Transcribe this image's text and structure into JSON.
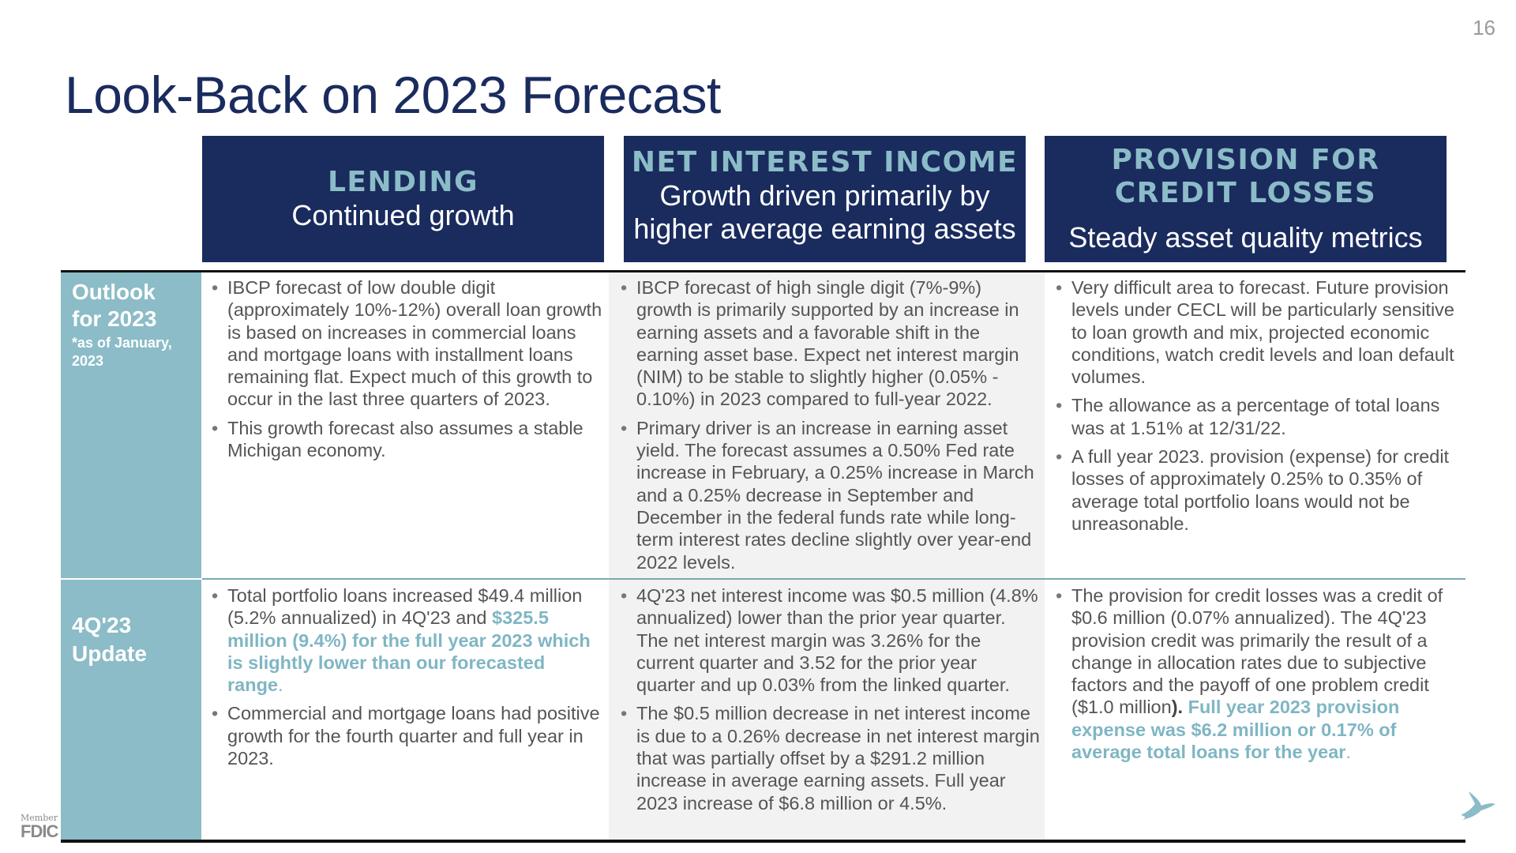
{
  "page_number": "16",
  "title": "Look-Back on 2023 Forecast",
  "columns": [
    {
      "category": "LENDING",
      "subtitle": "Continued growth"
    },
    {
      "category": "NET INTEREST INCOME",
      "subtitle": "Growth driven primarily by higher average earning assets"
    },
    {
      "category_line1": "PROVISION FOR",
      "category_line2": "CREDIT LOSSES",
      "subtitle": "Steady asset quality metrics"
    }
  ],
  "rows": [
    {
      "label": "Outlook for 2023",
      "note": "*as of January, 2023",
      "cells": [
        [
          "IBCP forecast of low double digit (approximately 10%-12%) overall loan growth is based on increases in commercial loans and mortgage loans with installment loans remaining flat. Expect much of this growth to occur in the last three quarters of 2023.",
          "This growth forecast also assumes a stable Michigan economy."
        ],
        [
          "IBCP forecast of high single digit (7%-9%) growth is primarily supported by an increase in earning assets and a favorable shift in the earning asset base. Expect net interest margin (NIM) to be stable to slightly higher (0.05% - 0.10%) in 2023 compared to full-year 2022.",
          "Primary driver is an increase in earning asset yield. The forecast assumes a 0.50% Fed rate increase in February, a 0.25% increase in March and a 0.25% decrease in September and December in the federal funds rate while long-term interest rates decline slightly over year-end 2022 levels."
        ],
        [
          "Very difficult area to forecast. Future provision levels under CECL will be particularly sensitive to loan growth and mix, projected economic conditions, watch credit levels and loan default volumes.",
          "The allowance as a percentage of total loans was at 1.51% at 12/31/22.",
          "A full year 2023. provision (expense) for credit losses of approximately 0.25% to 0.35% of average total portfolio loans would not be unreasonable."
        ]
      ]
    },
    {
      "label_line1": "4Q'23",
      "label_line2": "Update",
      "cells": {
        "lending_1_plain": "Total portfolio loans increased $49.4 million (5.2% annualized) in 4Q'23 and ",
        "lending_1_highlight": "$325.5 million (9.4%) for the full year 2023 which is slightly lower than our forecasted range",
        "lending_1_end": ".",
        "lending_2": "Commercial and mortgage loans had positive growth for the fourth quarter and full year in 2023.",
        "nii_1": "4Q'23 net interest income was $0.5 million (4.8% annualized)  lower than the prior year quarter. The net interest margin was 3.26% for the current quarter and 3.52 for the prior year quarter and up 0.03% from the linked quarter.",
        "nii_2": "The $0.5 million decrease in net interest income is due to a 0.26% decrease in net interest margin that was partially offset by a $291.2 million increase in average earning assets. Full year 2023 increase of $6.8 million or 4.5%.",
        "pcl_1_plain": "The provision for credit losses was a credit of  $0.6 million (0.07% annualized). The 4Q'23 provision credit was primarily the result of a change in allocation rates due to subjective factors and the payoff of one problem credit ($1.0 million",
        "pcl_1_bold": "). ",
        "pcl_1_highlight": "Full year 2023 provision expense was $6.2 million or 0.17% of average total loans for the year",
        "pcl_1_end": "."
      }
    }
  ],
  "footer": {
    "fdic_member": "Member",
    "fdic": "FDIC"
  },
  "colors": {
    "navy": "#1a2b5e",
    "teal": "#8bbcc7",
    "highlight": "#7fb6c4"
  },
  "icons": [
    "bird-logo-icon",
    "fdic-logo"
  ]
}
